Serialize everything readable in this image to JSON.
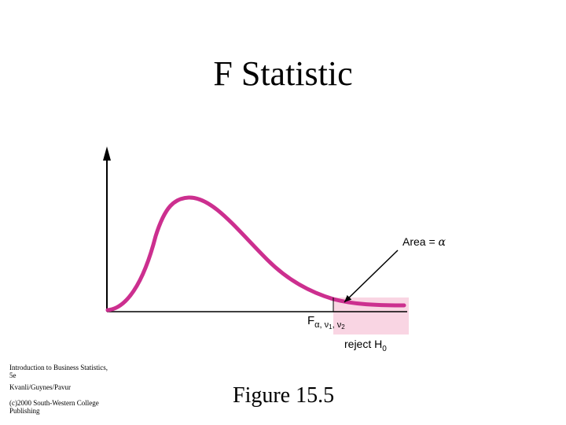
{
  "title": "F Statistic",
  "figure": {
    "area_label_prefix": "Area = ",
    "area_label_symbol": "α",
    "critical_main": "F",
    "critical_sub": "α, ν",
    "critical_sub_1": "1",
    "critical_sep": ", ν",
    "critical_sub_2": "2",
    "reject_main": "reject H",
    "reject_sub": "0",
    "curve_color": "#cc2f8f",
    "region_color": "#f9d5e3"
  },
  "credits": {
    "line1": "Introduction to Business Statistics, 5e",
    "line2": "Kvanli/Guynes/Pavur",
    "line3": "(c)2000 South-Western College Publishing"
  },
  "caption": "Figure 15.5"
}
